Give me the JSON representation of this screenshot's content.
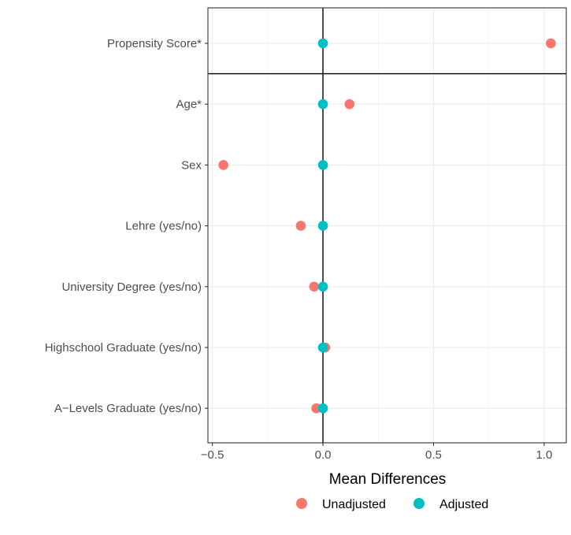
{
  "chart_data": {
    "type": "scatter",
    "xlabel": "Mean Differences",
    "ylabel": "",
    "xlim": [
      -0.52,
      1.1
    ],
    "xticks": [
      -0.5,
      0.0,
      0.5,
      1.0
    ],
    "xtick_labels": [
      "−0.5",
      "0.0",
      "0.5",
      "1.0"
    ],
    "grid": true,
    "legend_position": "bottom",
    "categories": [
      "Propensity Score*",
      "Age*",
      "Sex",
      "Lehre (yes/no)",
      "University Degree (yes/no)",
      "Highschool Graduate (yes/no)",
      "A−Levels Graduate (yes/no)"
    ],
    "series": [
      {
        "name": "Unadjusted",
        "color": "#F8766D",
        "values": [
          1.03,
          0.12,
          -0.45,
          -0.1,
          -0.04,
          0.01,
          -0.03
        ]
      },
      {
        "name": "Adjusted",
        "color": "#00BFC4",
        "values": [
          0.0,
          0.0,
          0.0,
          0.0,
          0.0,
          0.0,
          0.0
        ]
      }
    ]
  }
}
